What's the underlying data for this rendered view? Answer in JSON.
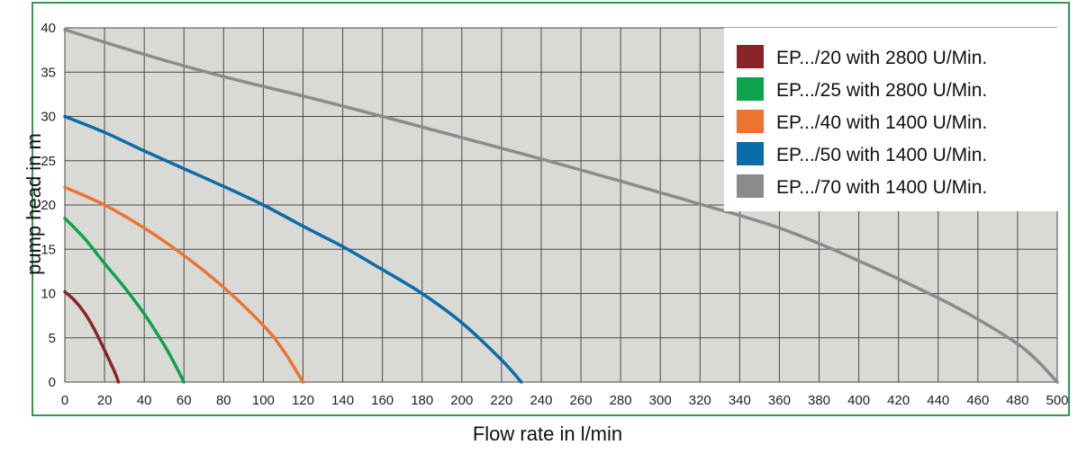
{
  "chart_data": {
    "type": "line",
    "title": "",
    "xlabel": "Flow rate in l/min",
    "ylabel": "pump head in m",
    "xlim": [
      0,
      500
    ],
    "ylim": [
      0,
      40
    ],
    "x_ticks": [
      0,
      20,
      40,
      60,
      80,
      100,
      120,
      140,
      160,
      180,
      200,
      220,
      240,
      260,
      280,
      300,
      320,
      340,
      360,
      380,
      400,
      420,
      440,
      460,
      480,
      500
    ],
    "y_ticks": [
      0,
      5,
      10,
      15,
      20,
      25,
      30,
      35,
      40
    ],
    "grid": true,
    "legend_position": "top-right",
    "series": [
      {
        "name": "EP.../20 with 2800 U/Min.",
        "color": "#8b2426",
        "x": [
          0,
          5,
          10,
          15,
          20,
          25,
          27
        ],
        "y": [
          10.2,
          9.2,
          7.8,
          5.9,
          3.6,
          1.2,
          0
        ]
      },
      {
        "name": "EP.../25 with 2800 U/Min.",
        "color": "#0ea24a",
        "x": [
          0,
          10,
          20,
          30,
          40,
          50,
          55,
          60
        ],
        "y": [
          18.5,
          16.2,
          13.4,
          10.7,
          7.7,
          4.2,
          2.2,
          0
        ]
      },
      {
        "name": "EP.../40 with 1400 U/Min.",
        "color": "#ec7430",
        "x": [
          0,
          20,
          40,
          60,
          80,
          100,
          110,
          120
        ],
        "y": [
          22,
          20,
          17.4,
          14.3,
          10.7,
          6.4,
          3.6,
          0
        ]
      },
      {
        "name": "EP.../50 with 1400 U/Min.",
        "color": "#0a6ca8",
        "x": [
          0,
          20,
          40,
          60,
          80,
          100,
          120,
          140,
          160,
          180,
          200,
          220,
          230
        ],
        "y": [
          30,
          28.2,
          26.1,
          24.1,
          22.1,
          20,
          17.6,
          15.3,
          12.7,
          10,
          6.7,
          2.5,
          0
        ]
      },
      {
        "name": "EP.../70 with 1400 U/Min.",
        "color": "#8b8b8b",
        "x": [
          0,
          40,
          80,
          120,
          160,
          200,
          240,
          280,
          320,
          360,
          400,
          440,
          460,
          480,
          490,
          500
        ],
        "y": [
          39.8,
          37,
          34.5,
          32.3,
          30,
          27.6,
          25.2,
          22.7,
          20.1,
          17.4,
          13.7,
          9.5,
          7.1,
          4.3,
          2.4,
          0
        ]
      }
    ]
  }
}
